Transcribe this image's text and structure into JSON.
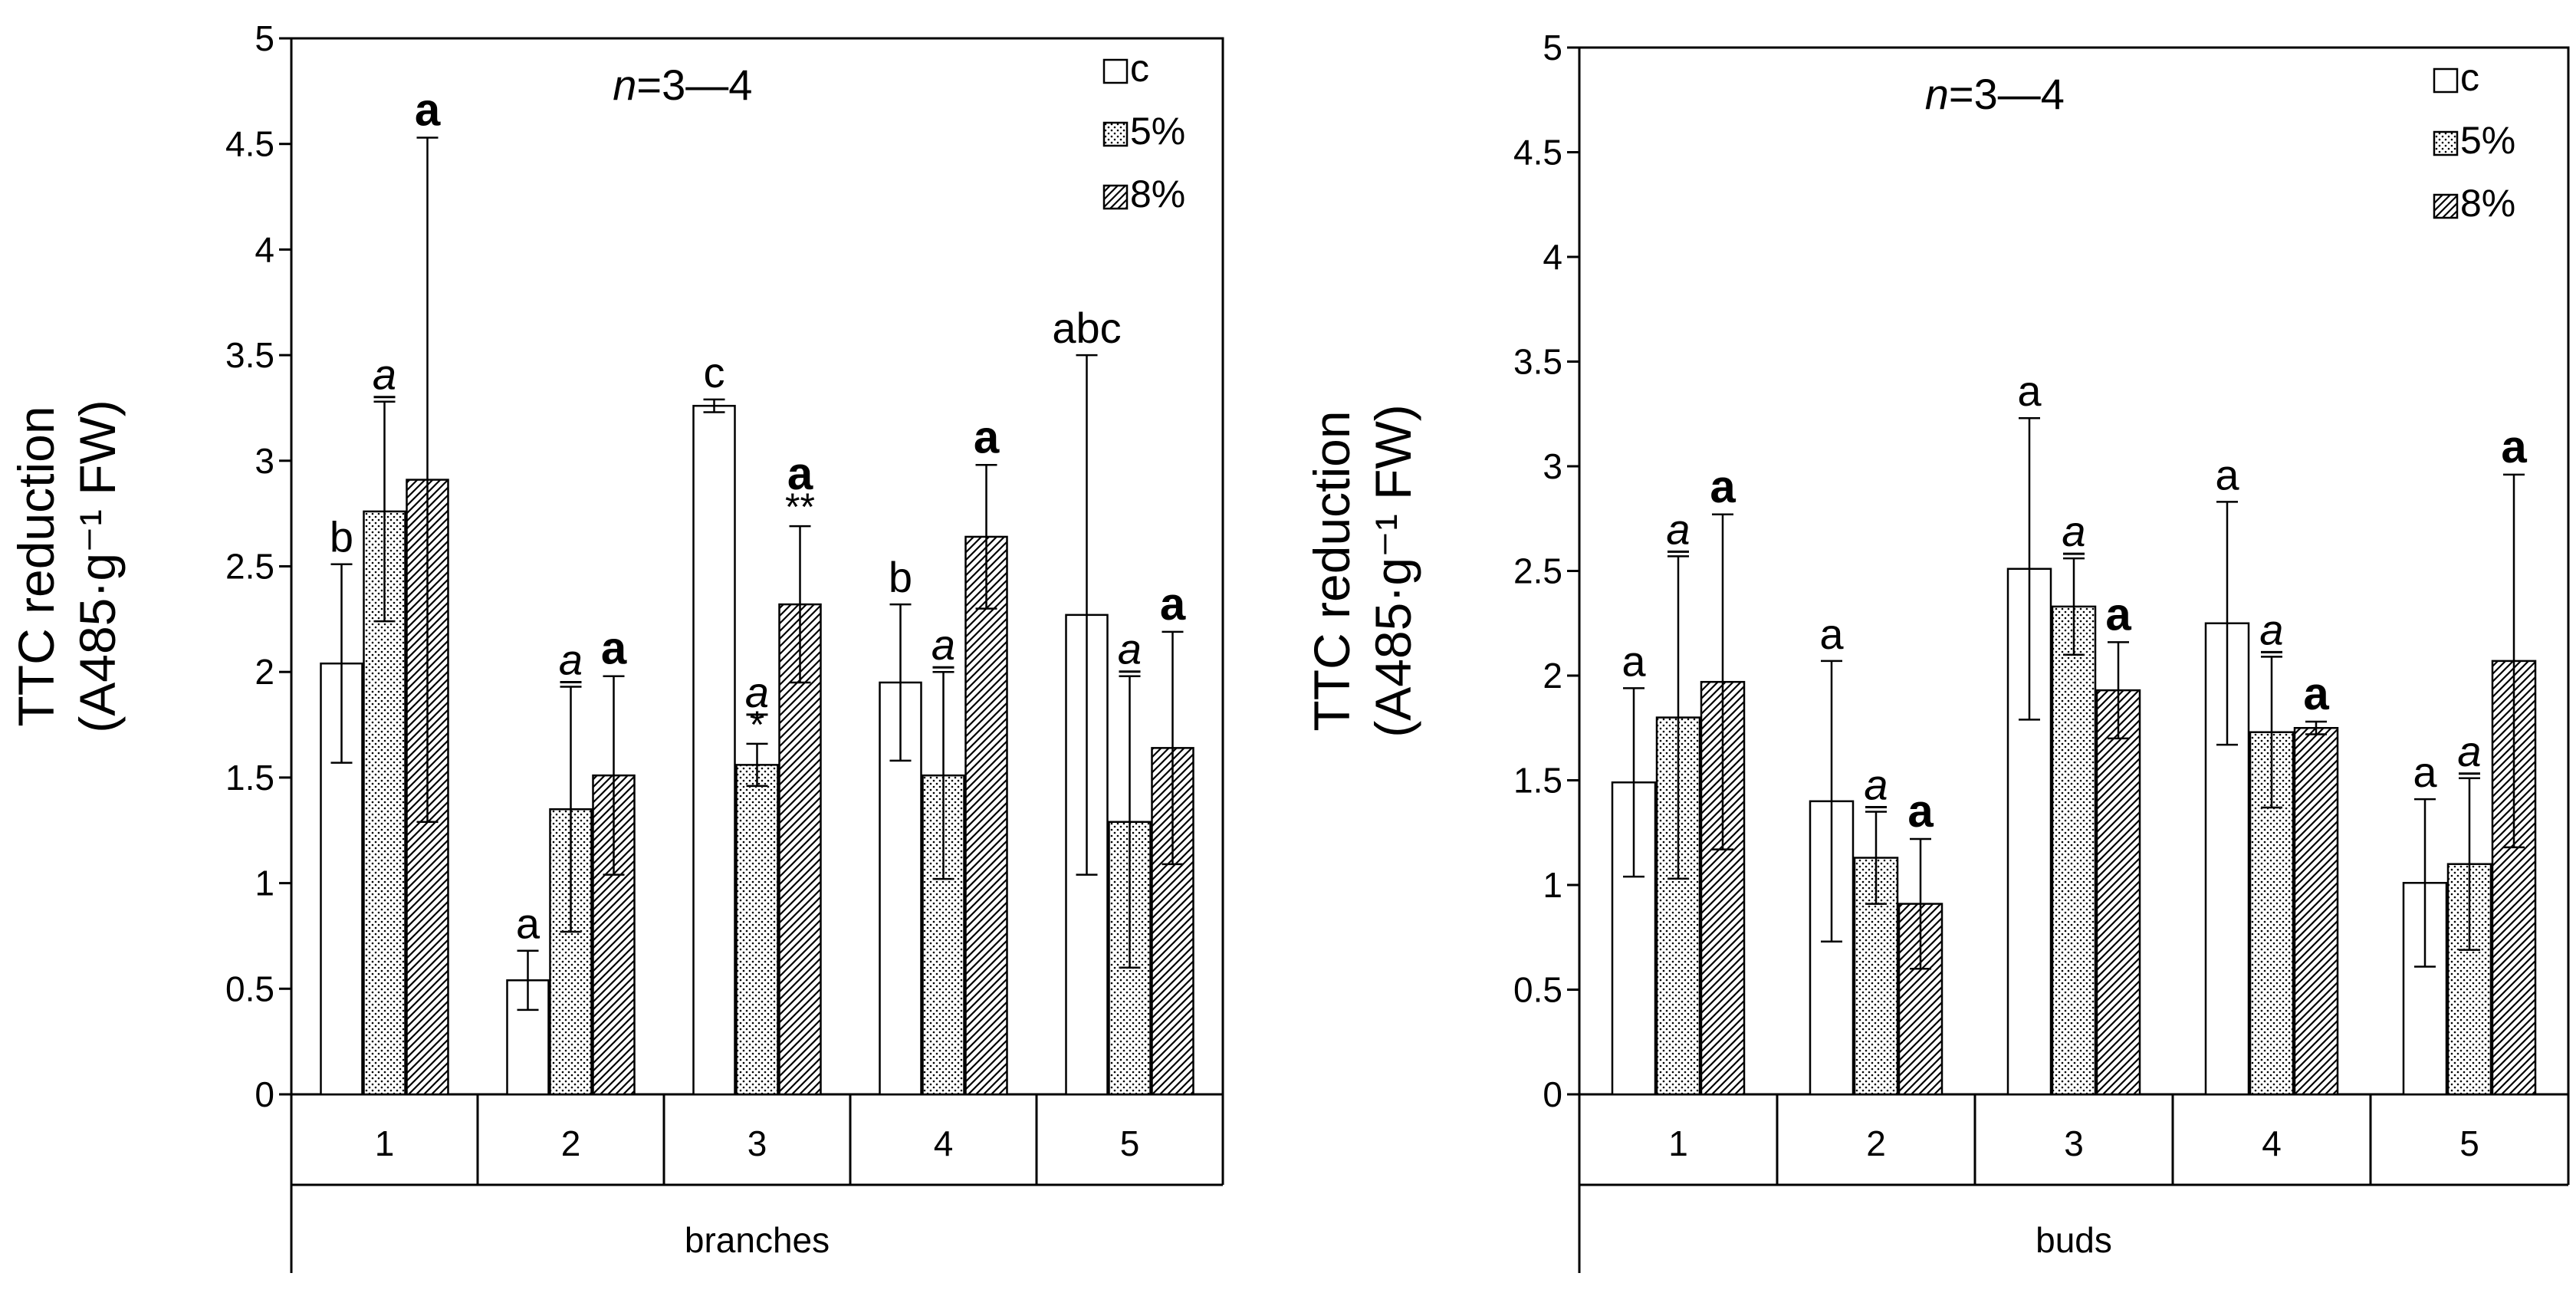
{
  "chart_data": [
    {
      "type": "bar",
      "ylabel_line1": "TTC reduction",
      "ylabel_line2": "(A485·g⁻¹ FW)",
      "xlabel": "branches",
      "annotation": "n=3—4",
      "annotation_italic": "n",
      "annotation_rest": "=3—4",
      "ylim": [
        0,
        5
      ],
      "yticks": [
        "0",
        "0.5",
        "1",
        "1.5",
        "2",
        "2.5",
        "3",
        "3.5",
        "4",
        "4.5",
        "5"
      ],
      "categories": [
        "1",
        "2",
        "3",
        "4",
        "5"
      ],
      "legend_position": "top-right",
      "series": [
        {
          "name": "c",
          "pattern": "white",
          "values": [
            2.04,
            0.54,
            3.26,
            1.95,
            2.27
          ],
          "errors": [
            0.47,
            0.14,
            0.03,
            0.37,
            1.23
          ],
          "labels": [
            "b",
            "a",
            "c",
            "b",
            "abc"
          ],
          "label_style": "plain",
          "marks": [
            "",
            "",
            "",
            "",
            ""
          ]
        },
        {
          "name": "5%",
          "pattern": "dots",
          "values": [
            2.76,
            1.35,
            1.56,
            1.51,
            1.29
          ],
          "errors": [
            0.52,
            0.58,
            0.1,
            0.49,
            0.69
          ],
          "labels": [
            "a",
            "a",
            "a",
            "a",
            "a"
          ],
          "label_style": "italic",
          "marks": [
            "",
            "",
            "*",
            "",
            ""
          ]
        },
        {
          "name": "8%",
          "pattern": "hatch",
          "values": [
            2.91,
            1.51,
            2.32,
            2.64,
            1.64
          ],
          "errors": [
            1.62,
            0.47,
            0.37,
            0.34,
            0.55
          ],
          "labels": [
            "a",
            "a",
            "a",
            "a",
            "a"
          ],
          "label_style": "bold",
          "marks": [
            "",
            "",
            "**",
            "",
            ""
          ]
        }
      ]
    },
    {
      "type": "bar",
      "ylabel_line1": "TTC reduction",
      "ylabel_line2": "(A485·g⁻¹ FW)",
      "xlabel": "buds",
      "annotation": "n=3—4",
      "annotation_italic": "n",
      "annotation_rest": "=3—4",
      "ylim": [
        0,
        5
      ],
      "yticks": [
        "0",
        "0.5",
        "1",
        "1.5",
        "2",
        "2.5",
        "3",
        "3.5",
        "4",
        "4.5",
        "5"
      ],
      "categories": [
        "1",
        "2",
        "3",
        "4",
        "5"
      ],
      "legend_position": "top-right",
      "series": [
        {
          "name": "c",
          "pattern": "white",
          "values": [
            1.49,
            1.4,
            2.51,
            2.25,
            1.01
          ],
          "errors": [
            0.45,
            0.67,
            0.72,
            0.58,
            0.4
          ],
          "labels": [
            "a",
            "a",
            "a",
            "a",
            "a"
          ],
          "label_style": "plain",
          "marks": [
            "",
            "",
            "",
            "",
            ""
          ]
        },
        {
          "name": "5%",
          "pattern": "dots",
          "values": [
            1.8,
            1.13,
            2.33,
            1.73,
            1.1
          ],
          "errors": [
            0.77,
            0.22,
            0.23,
            0.36,
            0.41
          ],
          "labels": [
            "a",
            "a",
            "a",
            "a",
            "a"
          ],
          "label_style": "italic",
          "marks": [
            "",
            "",
            "",
            "",
            ""
          ]
        },
        {
          "name": "8%",
          "pattern": "hatch",
          "values": [
            1.97,
            0.91,
            1.93,
            1.75,
            2.07
          ],
          "errors": [
            0.8,
            0.31,
            0.23,
            0.03,
            0.89
          ],
          "labels": [
            "a",
            "a",
            "a",
            "a",
            "a"
          ],
          "label_style": "bold",
          "marks": [
            "",
            "",
            "",
            "",
            ""
          ]
        }
      ]
    }
  ]
}
